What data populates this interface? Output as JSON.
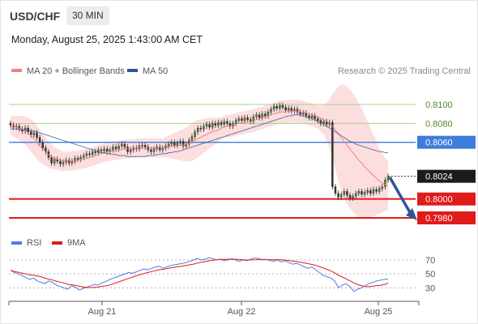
{
  "header": {
    "pair": "USD/CHF",
    "timeframe": "30 MIN"
  },
  "datetime": "Monday, August 25, 2025 1:43:00 AM CET",
  "legend": {
    "ma20": "MA 20 + Bollinger Bands",
    "ma50": "MA 50",
    "credit": "Research © 2025 Trading Central",
    "rsi": "RSI",
    "rsi_ma": "9MA"
  },
  "colors": {
    "ma20": "#f08080",
    "ma50": "#2f5597",
    "bollinger": "#fdd8d8",
    "resistance": "#a8d08d",
    "pivot": "#3d7ddb",
    "support": "#e01b1b",
    "rsi": "#4f7fdc",
    "rsi_ma": "#e01b1b",
    "arrow": "#2f5597"
  },
  "chart_data": [
    {
      "type": "candlestick",
      "ylim": [
        0.7968,
        0.8124
      ],
      "x_ticks": [
        "Aug 21",
        "Aug 22",
        "Aug 25"
      ],
      "levels": [
        {
          "value": 0.81,
          "label": "0.8100",
          "kind": "resistance"
        },
        {
          "value": 0.808,
          "label": "0.8080",
          "kind": "resistance"
        },
        {
          "value": 0.806,
          "label": "0.8060",
          "kind": "pivot"
        },
        {
          "value": 0.8,
          "label": "0.8000",
          "kind": "support"
        },
        {
          "value": 0.798,
          "label": "0.7980",
          "kind": "support"
        }
      ],
      "last_price": {
        "value": 0.8024,
        "label": "0.8024"
      },
      "price": [
        0.8078,
        0.8076,
        0.8077,
        0.8074,
        0.8072,
        0.8075,
        0.8071,
        0.8068,
        0.807,
        0.8065,
        0.806,
        0.8054,
        0.805,
        0.8044,
        0.8038,
        0.8042,
        0.804,
        0.8037,
        0.8039,
        0.8041,
        0.8038,
        0.804,
        0.8043,
        0.8042,
        0.8044,
        0.8046,
        0.8048,
        0.8047,
        0.805,
        0.8049,
        0.8052,
        0.8051,
        0.8053,
        0.805,
        0.8052,
        0.8055,
        0.8053,
        0.8056,
        0.8058,
        0.8055,
        0.805,
        0.8052,
        0.8054,
        0.8053,
        0.8056,
        0.8057,
        0.8055,
        0.8052,
        0.805,
        0.8053,
        0.8055,
        0.8052,
        0.8054,
        0.8056,
        0.8058,
        0.806,
        0.8057,
        0.8059,
        0.8061,
        0.8056,
        0.8058,
        0.8062,
        0.8066,
        0.8071,
        0.8075,
        0.8074,
        0.8077,
        0.8079,
        0.8076,
        0.808,
        0.8078,
        0.8081,
        0.8079,
        0.8082,
        0.808,
        0.8077,
        0.808,
        0.8083,
        0.8085,
        0.8083,
        0.8086,
        0.8084,
        0.8082,
        0.8087,
        0.8089,
        0.8086,
        0.809,
        0.8088,
        0.8092,
        0.8095,
        0.8098,
        0.8096,
        0.8099,
        0.8097,
        0.8094,
        0.8096,
        0.8093,
        0.8095,
        0.8092,
        0.809,
        0.8091,
        0.8088,
        0.8086,
        0.8088,
        0.8085,
        0.8083,
        0.808,
        0.8082,
        0.8079,
        0.8081,
        0.8013,
        0.8006,
        0.8002,
        0.8005,
        0.8008,
        0.8004,
        0.8001,
        0.8003,
        0.8006,
        0.8008,
        0.8005,
        0.8007,
        0.8009,
        0.8006,
        0.801,
        0.8008,
        0.8011,
        0.8013,
        0.802,
        0.8024
      ],
      "ma20": [
        0.8078,
        0.8077,
        0.8076,
        0.8075,
        0.8074,
        0.8072,
        0.807,
        0.8067,
        0.8064,
        0.806,
        0.8056,
        0.8053,
        0.805,
        0.8047,
        0.8045,
        0.8043,
        0.8042,
        0.8041,
        0.804,
        0.804,
        0.804,
        0.804,
        0.8041,
        0.8041,
        0.8042,
        0.8042,
        0.8043,
        0.8044,
        0.8045,
        0.8046,
        0.8047,
        0.8048,
        0.8049,
        0.805,
        0.805,
        0.8051,
        0.8051,
        0.8052,
        0.8052,
        0.8053,
        0.8053,
        0.8053,
        0.8053,
        0.8054,
        0.8054,
        0.8054,
        0.8054,
        0.8054,
        0.8054,
        0.8054,
        0.8054,
        0.8054,
        0.8054,
        0.8055,
        0.8055,
        0.8056,
        0.8056,
        0.8056,
        0.8057,
        0.8057,
        0.8058,
        0.8059,
        0.806,
        0.8062,
        0.8064,
        0.8065,
        0.8067,
        0.8068,
        0.807,
        0.8071,
        0.8072,
        0.8073,
        0.8075,
        0.8076,
        0.8077,
        0.8077,
        0.8078,
        0.8079,
        0.808,
        0.808,
        0.8081,
        0.8082,
        0.8082,
        0.8083,
        0.8084,
        0.8085,
        0.8086,
        0.8087,
        0.8088,
        0.8089,
        0.809,
        0.8091,
        0.8092,
        0.8092,
        0.8092,
        0.8093,
        0.8093,
        0.8093,
        0.8093,
        0.8092,
        0.8092,
        0.8091,
        0.809,
        0.8089,
        0.8088,
        0.8087,
        0.8085,
        0.8084,
        0.8082,
        0.808,
        0.8077,
        0.8073,
        0.8069,
        0.8065,
        0.8061,
        0.8057,
        0.8053,
        0.8049,
        0.8045,
        0.8041,
        0.8038,
        0.8034,
        0.8031,
        0.8028,
        0.8025,
        0.8022,
        0.8019,
        0.8017,
        0.8015,
        0.8014
      ],
      "ma50": [
        0.8074,
        0.8074,
        0.8074,
        0.8074,
        0.8073,
        0.8073,
        0.8073,
        0.8072,
        0.8072,
        0.8071,
        0.807,
        0.8069,
        0.8068,
        0.8067,
        0.8066,
        0.8065,
        0.8064,
        0.8063,
        0.8062,
        0.8061,
        0.806,
        0.8059,
        0.8058,
        0.8057,
        0.8056,
        0.8055,
        0.8054,
        0.8053,
        0.8052,
        0.8051,
        0.805,
        0.8049,
        0.8049,
        0.8048,
        0.8048,
        0.8047,
        0.8047,
        0.8046,
        0.8046,
        0.8046,
        0.8045,
        0.8045,
        0.8045,
        0.8045,
        0.8045,
        0.8045,
        0.8045,
        0.8046,
        0.8046,
        0.8046,
        0.8047,
        0.8047,
        0.8048,
        0.8048,
        0.8049,
        0.8049,
        0.805,
        0.805,
        0.8051,
        0.8052,
        0.8053,
        0.8054,
        0.8055,
        0.8056,
        0.8057,
        0.8058,
        0.8059,
        0.806,
        0.8061,
        0.8062,
        0.8063,
        0.8064,
        0.8065,
        0.8066,
        0.8067,
        0.8068,
        0.8069,
        0.807,
        0.8071,
        0.8072,
        0.8073,
        0.8074,
        0.8075,
        0.8076,
        0.8077,
        0.8078,
        0.8079,
        0.808,
        0.8081,
        0.8082,
        0.8083,
        0.8084,
        0.8085,
        0.8086,
        0.8087,
        0.8088,
        0.8088,
        0.8089,
        0.8089,
        0.8089,
        0.8088,
        0.8087,
        0.8086,
        0.8085,
        0.8084,
        0.8082,
        0.8081,
        0.8079,
        0.8077,
        0.8075,
        0.8073,
        0.8071,
        0.8069,
        0.8067,
        0.8065,
        0.8063,
        0.8061,
        0.806,
        0.8058,
        0.8057,
        0.8056,
        0.8055,
        0.8054,
        0.8053,
        0.8052,
        0.8051,
        0.805,
        0.805,
        0.8049,
        0.8049
      ],
      "bb_width": [
        0.001,
        0.0011,
        0.0012,
        0.0013,
        0.0014,
        0.0015,
        0.0016,
        0.0017,
        0.0018,
        0.0018,
        0.0017,
        0.0016,
        0.0015,
        0.0014,
        0.0013,
        0.0012,
        0.0011,
        0.0011,
        0.001,
        0.001,
        0.001,
        0.001,
        0.001,
        0.001,
        0.001,
        0.001,
        0.001,
        0.001,
        0.001,
        0.001,
        0.001,
        0.001,
        0.001,
        0.001,
        0.001,
        0.001,
        0.001,
        0.001,
        0.001,
        0.001,
        0.001,
        0.001,
        0.001,
        0.001,
        0.001,
        0.001,
        0.001,
        0.001,
        0.001,
        0.001,
        0.001,
        0.001,
        0.001,
        0.0011,
        0.0012,
        0.0013,
        0.0014,
        0.0015,
        0.0016,
        0.0017,
        0.0018,
        0.0019,
        0.002,
        0.002,
        0.002,
        0.0019,
        0.0018,
        0.0017,
        0.0016,
        0.0015,
        0.0014,
        0.0013,
        0.0012,
        0.0012,
        0.0012,
        0.0012,
        0.0012,
        0.0012,
        0.0012,
        0.0012,
        0.0012,
        0.0012,
        0.0012,
        0.0012,
        0.0012,
        0.0012,
        0.0012,
        0.0012,
        0.0012,
        0.0012,
        0.0012,
        0.0012,
        0.0012,
        0.0012,
        0.0012,
        0.0012,
        0.0012,
        0.0012,
        0.0012,
        0.0012,
        0.0012,
        0.0012,
        0.0012,
        0.0012,
        0.0012,
        0.0012,
        0.0014,
        0.0016,
        0.002,
        0.0026,
        0.0034,
        0.0042,
        0.005,
        0.0056,
        0.006,
        0.0062,
        0.0063,
        0.0063,
        0.0062,
        0.006,
        0.0058,
        0.0055,
        0.0051,
        0.0047,
        0.0043,
        0.0039,
        0.0035,
        0.0031,
        0.0028,
        0.0026
      ],
      "forecast": {
        "from": 0.8024,
        "to": 0.798
      }
    },
    {
      "type": "line",
      "name": "RSI",
      "ylim": [
        20,
        78
      ],
      "y_ticks": [
        70,
        50,
        30
      ],
      "rsi": [
        55,
        52,
        50,
        48,
        45,
        42,
        44,
        40,
        38,
        36,
        40,
        38,
        34,
        32,
        30,
        28,
        33,
        31,
        27,
        29,
        31,
        33,
        35,
        34,
        37,
        39,
        42,
        44,
        46,
        48,
        50,
        52,
        51,
        53,
        55,
        57,
        56,
        58,
        60,
        61,
        58,
        60,
        62,
        63,
        64,
        65,
        66,
        68,
        70,
        72,
        70,
        71,
        73,
        72,
        70,
        71,
        69,
        70,
        72,
        70,
        68,
        70,
        69,
        71,
        73,
        72,
        70,
        71,
        69,
        68,
        70,
        67,
        69,
        66,
        64,
        65,
        63,
        60,
        58,
        60,
        56,
        52,
        48,
        46,
        44,
        40,
        30,
        34,
        36,
        32,
        25,
        28,
        30,
        33,
        36,
        38,
        40,
        41,
        42,
        43
      ]
    }
  ]
}
